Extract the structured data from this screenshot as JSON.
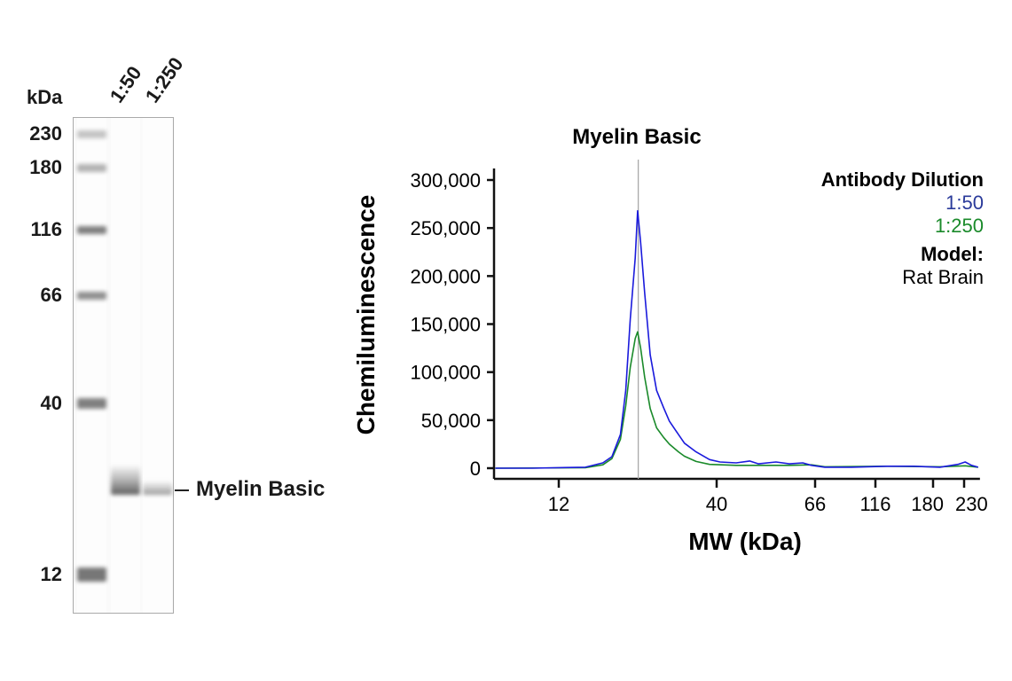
{
  "chart_data": [
    {
      "type": "table",
      "kind": "virtual blot",
      "unit_label": "kDa",
      "lane_labels": [
        "1:50",
        "1:250"
      ],
      "ladder": [
        230,
        180,
        116,
        66,
        40,
        12
      ],
      "ladder_intensity": [
        0.35,
        0.45,
        0.75,
        0.65,
        0.75,
        0.8
      ],
      "band_label": "Myelin Basic",
      "band_intensity": [
        0.85,
        0.55
      ]
    },
    {
      "type": "line",
      "title": "Myelin Basic",
      "xlabel": "MW (kDa)",
      "ylabel": "Chemiluminescence",
      "x_ticks": [
        12,
        40,
        66,
        116,
        180,
        230
      ],
      "x_tick_labels": [
        "12",
        "40",
        "66",
        "116",
        "180",
        "230"
      ],
      "y_ticks": [
        0,
        50000,
        100000,
        150000,
        200000,
        250000,
        300000
      ],
      "y_tick_labels": [
        "0",
        "50,000",
        "100,000",
        "150,000",
        "200,000",
        "250,000",
        "300,000"
      ],
      "ylim": [
        0,
        300000
      ],
      "xlim": [
        7.4,
        257
      ],
      "reference_line_x": 22,
      "grid": false,
      "legend": {
        "title": "Antibody Dilution",
        "placement": "top-right",
        "model_label": "Model:",
        "model_value": "Rat Brain"
      },
      "series": [
        {
          "name": "1:50",
          "color": "#1a1adc",
          "points": [
            [
              7.4,
              0
            ],
            [
              9.8,
              0
            ],
            [
              14.7,
              1000
            ],
            [
              16.8,
              5500
            ],
            [
              18.0,
              12000
            ],
            [
              19.2,
              35000
            ],
            [
              20.0,
              81000
            ],
            [
              20.7,
              155000
            ],
            [
              21.5,
              219000
            ],
            [
              21.9,
              268000
            ],
            [
              22.4,
              235000
            ],
            [
              23.1,
              183000
            ],
            [
              24.1,
              118000
            ],
            [
              25.3,
              81000
            ],
            [
              26.7,
              63000
            ],
            [
              27.9,
              49000
            ],
            [
              29.9,
              35000
            ],
            [
              31.3,
              26000
            ],
            [
              34.2,
              17000
            ],
            [
              37.9,
              9000
            ],
            [
              40.7,
              6500
            ],
            [
              44.2,
              5500
            ],
            [
              47.3,
              7500
            ],
            [
              49.5,
              4500
            ],
            [
              54.1,
              6500
            ],
            [
              57.9,
              4500
            ],
            [
              62,
              5500
            ],
            [
              64.8,
              3000
            ],
            [
              72.3,
              1000
            ],
            [
              92.7,
              1000
            ],
            [
              126.7,
              2000
            ],
            [
              155,
              2000
            ],
            [
              190,
              1000
            ],
            [
              219,
              4000
            ],
            [
              232,
              6500
            ],
            [
              244,
              3000
            ],
            [
              257,
              1000
            ]
          ]
        },
        {
          "name": "1:250",
          "color": "#1a8a2a",
          "points": [
            [
              7.4,
              0
            ],
            [
              14.7,
              500
            ],
            [
              16.8,
              3500
            ],
            [
              18.0,
              10000
            ],
            [
              19.2,
              30000
            ],
            [
              20.0,
              65000
            ],
            [
              20.7,
              105000
            ],
            [
              21.5,
              135000
            ],
            [
              21.9,
              142000
            ],
            [
              22.4,
              125000
            ],
            [
              23.1,
              95000
            ],
            [
              24.1,
              62000
            ],
            [
              25.3,
              42000
            ],
            [
              26.7,
              32000
            ],
            [
              27.9,
              25000
            ],
            [
              29.9,
              17000
            ],
            [
              31.3,
              12500
            ],
            [
              34.2,
              7000
            ],
            [
              37.9,
              4000
            ],
            [
              44.2,
              3000
            ],
            [
              57.9,
              3000
            ],
            [
              64.8,
              3500
            ],
            [
              72.3,
              1500
            ],
            [
              126.7,
              2000
            ],
            [
              190,
              1500
            ],
            [
              232,
              2500
            ],
            [
              257,
              1000
            ]
          ]
        }
      ]
    }
  ]
}
